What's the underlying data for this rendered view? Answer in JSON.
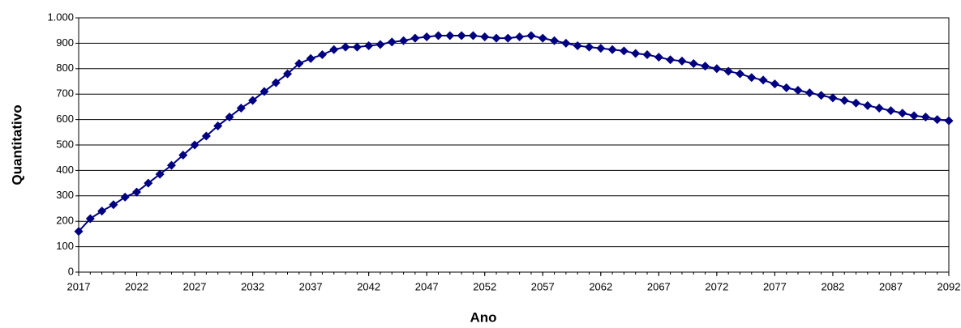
{
  "chart_data": {
    "type": "line",
    "x_label": "Ano",
    "y_label": "Quantitativo",
    "x": [
      2017,
      2018,
      2019,
      2020,
      2021,
      2022,
      2023,
      2024,
      2025,
      2026,
      2027,
      2028,
      2029,
      2030,
      2031,
      2032,
      2033,
      2034,
      2035,
      2036,
      2037,
      2038,
      2039,
      2040,
      2041,
      2042,
      2043,
      2044,
      2045,
      2046,
      2047,
      2048,
      2049,
      2050,
      2051,
      2052,
      2053,
      2054,
      2055,
      2056,
      2057,
      2058,
      2059,
      2060,
      2061,
      2062,
      2063,
      2064,
      2065,
      2066,
      2067,
      2068,
      2069,
      2070,
      2071,
      2072,
      2073,
      2074,
      2075,
      2076,
      2077,
      2078,
      2079,
      2080,
      2081,
      2082,
      2083,
      2084,
      2085,
      2086,
      2087,
      2088,
      2089,
      2090,
      2091,
      2092
    ],
    "values": [
      160,
      210,
      240,
      265,
      295,
      315,
      350,
      385,
      420,
      460,
      500,
      535,
      575,
      610,
      645,
      675,
      710,
      745,
      780,
      820,
      840,
      855,
      875,
      885,
      885,
      890,
      895,
      905,
      910,
      920,
      925,
      930,
      930,
      930,
      930,
      925,
      920,
      920,
      925,
      930,
      920,
      910,
      900,
      890,
      885,
      880,
      875,
      870,
      860,
      855,
      845,
      835,
      830,
      820,
      810,
      800,
      790,
      780,
      765,
      755,
      740,
      725,
      715,
      705,
      695,
      685,
      675,
      665,
      655,
      645,
      635,
      625,
      615,
      610,
      600,
      595
    ],
    "color": "#000080",
    "xlim": [
      2017,
      2092
    ],
    "xticks": [
      2017,
      2022,
      2027,
      2032,
      2037,
      2042,
      2047,
      2052,
      2057,
      2062,
      2067,
      2072,
      2077,
      2082,
      2087,
      2092
    ],
    "ylim": [
      0,
      1000
    ],
    "yticks": [
      0,
      100,
      200,
      300,
      400,
      500,
      600,
      700,
      800,
      900,
      {
        "value": 1000,
        "label": "1.000"
      }
    ],
    "grid": true
  }
}
